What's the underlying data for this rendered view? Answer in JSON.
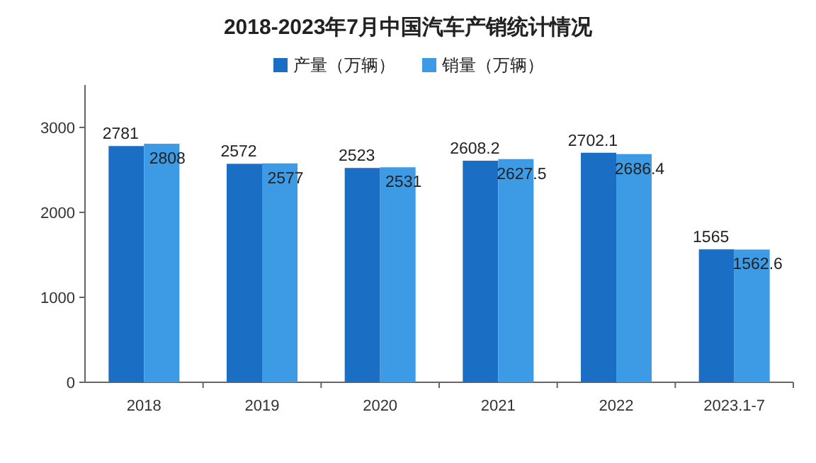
{
  "chart_data": {
    "type": "bar",
    "title": "2018-2023年7月中国汽车产销统计情况",
    "categories": [
      "2018",
      "2019",
      "2020",
      "2021",
      "2022",
      "2023.1-7"
    ],
    "series": [
      {
        "name": "产量（万辆）",
        "color": "#1a6fc4",
        "values": [
          2781,
          2572,
          2523,
          2608.2,
          2702.1,
          1565
        ]
      },
      {
        "name": "销量（万辆）",
        "color": "#3d9be6",
        "values": [
          2808,
          2577,
          2531,
          2627.5,
          2686.4,
          1562.6
        ]
      }
    ],
    "ylim": [
      0,
      3500
    ],
    "yticks": [
      0,
      1000,
      2000,
      3000
    ],
    "data_labels": true,
    "legend": "top",
    "grid": false
  }
}
